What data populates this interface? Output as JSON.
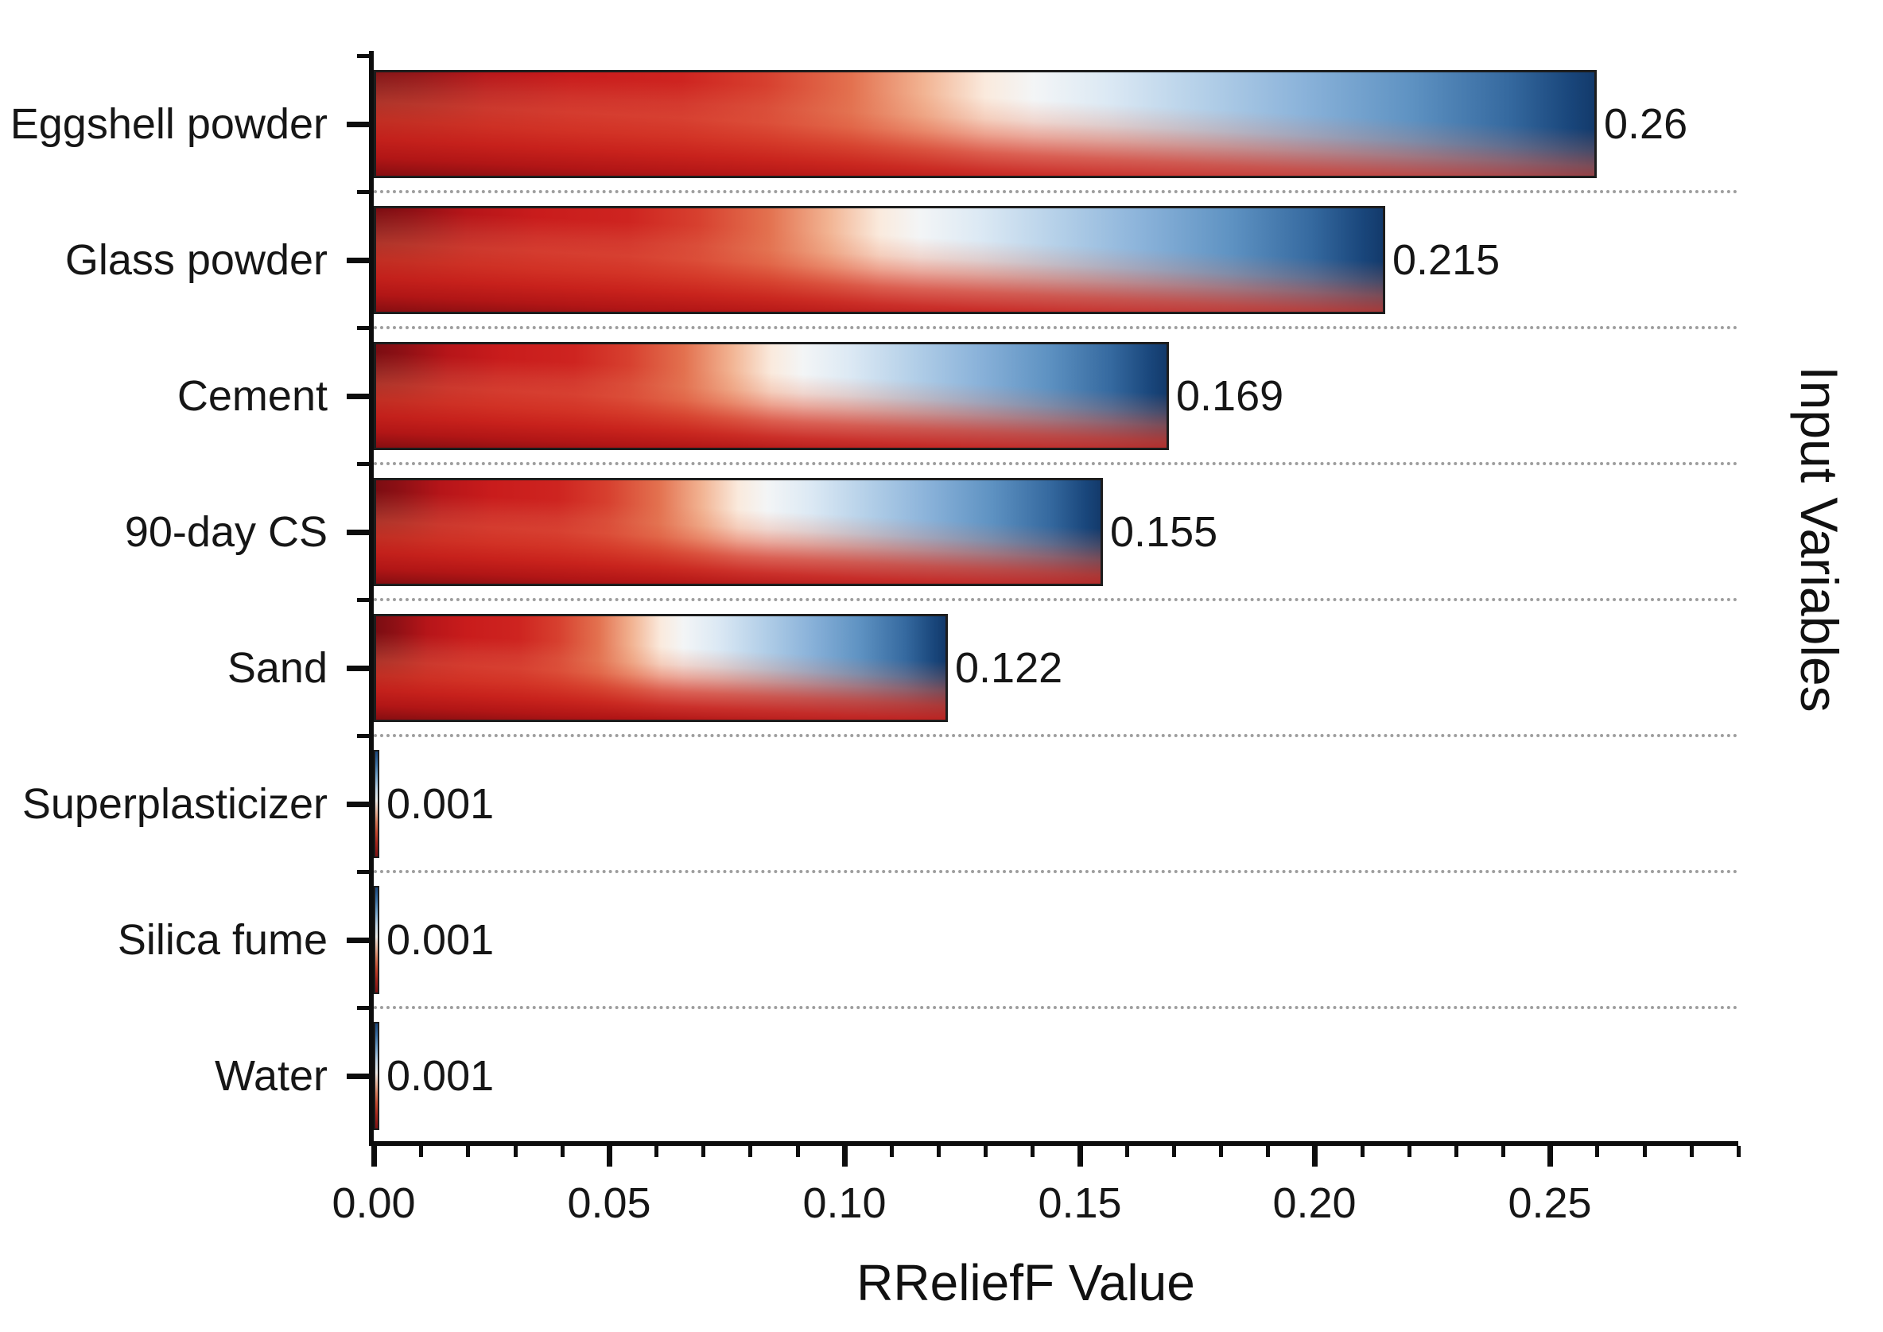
{
  "chart_data": {
    "type": "bar",
    "orientation": "horizontal",
    "title": "",
    "xlabel": "RReliefF Value",
    "ylabel": "Input Variables",
    "categories": [
      "Eggshell powder",
      "Glass powder",
      "Cement",
      "90-day CS",
      "Sand",
      "Superplasticizer",
      "Silica fume",
      "Water"
    ],
    "values": [
      0.26,
      0.215,
      0.169,
      0.155,
      0.122,
      0.001,
      0.001,
      0.001
    ],
    "value_labels": [
      "0.26",
      "0.215",
      "0.169",
      "0.155",
      "0.122",
      "0.001",
      "0.001",
      "0.001"
    ],
    "xlim": [
      0,
      0.29
    ],
    "x_major_ticks": [
      0.0,
      0.05,
      0.1,
      0.15,
      0.2,
      0.25
    ],
    "x_major_tick_labels": [
      "0.00",
      "0.05",
      "0.10",
      "0.15",
      "0.20",
      "0.25"
    ],
    "x_minor_tick_step": 0.01,
    "grid": "dotted horizontal gridlines between category rows",
    "legend": null,
    "colors": {
      "bar_dark_red": "#7c0d12",
      "bar_red": "#ce2420",
      "bar_white": "#f6f3ef",
      "bar_light_blue": "#abcae5",
      "bar_navy": "#143e74",
      "bar_border": "#1d1d1d",
      "axis": "#0d0d0d",
      "gridline": "#9e9e9e",
      "text": "#161616",
      "background": "#ffffff"
    }
  }
}
